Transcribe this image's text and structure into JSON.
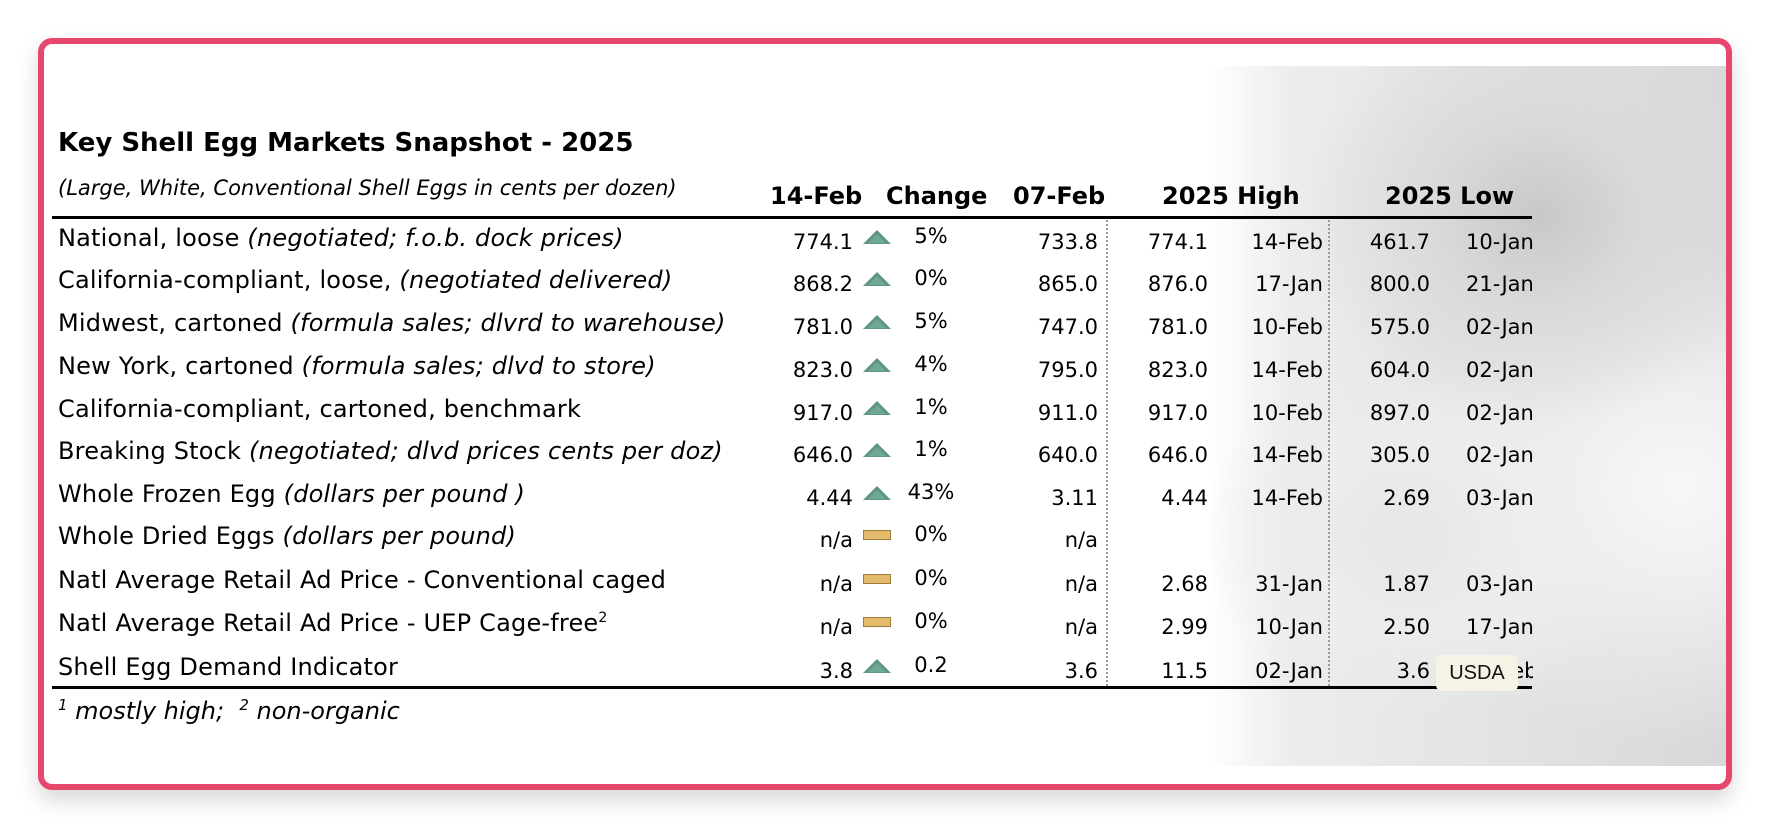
{
  "title": "Key Shell Egg Markets Snapshot - 2025",
  "subtitle": "(Large, White, Conventional Shell Eggs in cents per dozen)",
  "columns": {
    "current": "14-Feb",
    "change": "Change",
    "previous": "07-Feb",
    "high": "2025 High",
    "low": "2025 Low"
  },
  "indicator_colors": {
    "up": "#5c9580",
    "flat": "#e3bb6b"
  },
  "rows": [
    {
      "label": "National, loose ",
      "note": "(negotiated; f.o.b. dock prices)",
      "sup": "",
      "current": "774.1",
      "indicator": "up",
      "change": "5%",
      "previous": "733.8",
      "high": "774.1",
      "high_date": "14-Feb",
      "low": "461.7",
      "low_date": "10-Jan"
    },
    {
      "label": "California-compliant, loose, ",
      "note": "(negotiated delivered)",
      "sup": "",
      "current": "868.2",
      "indicator": "up",
      "change": "0%",
      "previous": "865.0",
      "high": "876.0",
      "high_date": "17-Jan",
      "low": "800.0",
      "low_date": "21-Jan"
    },
    {
      "label": "Midwest, cartoned ",
      "note": "(formula sales; dlvrd to warehouse)",
      "sup": "",
      "current": "781.0",
      "indicator": "up",
      "change": "5%",
      "previous": "747.0",
      "high": "781.0",
      "high_date": "10-Feb",
      "low": "575.0",
      "low_date": "02-Jan"
    },
    {
      "label": "New York, cartoned ",
      "note": "(formula sales; dlvd to store)",
      "sup": "",
      "current": "823.0",
      "indicator": "up",
      "change": "4%",
      "previous": "795.0",
      "high": "823.0",
      "high_date": "14-Feb",
      "low": "604.0",
      "low_date": "02-Jan"
    },
    {
      "label": "California-compliant, cartoned, benchmark",
      "note": "",
      "sup": "",
      "current": "917.0",
      "indicator": "up",
      "change": "1%",
      "previous": "911.0",
      "high": "917.0",
      "high_date": "10-Feb",
      "low": "897.0",
      "low_date": "02-Jan"
    },
    {
      "label": "Breaking Stock ",
      "note": "(negotiated; dlvd prices cents per doz)",
      "sup": "",
      "current": "646.0",
      "indicator": "up",
      "change": "1%",
      "previous": "640.0",
      "high": "646.0",
      "high_date": "14-Feb",
      "low": "305.0",
      "low_date": "02-Jan"
    },
    {
      "label": "Whole Frozen Egg ",
      "note": "(dollars per pound )",
      "sup": "",
      "current": "4.44",
      "indicator": "up",
      "change": "43%",
      "previous": "3.11",
      "high": "4.44",
      "high_date": "14-Feb",
      "low": "2.69",
      "low_date": "03-Jan"
    },
    {
      "label": "Whole Dried Eggs ",
      "note": "(dollars per pound)",
      "sup": "",
      "current": "n/a",
      "indicator": "flat",
      "change": "0%",
      "previous": "n/a",
      "high": "",
      "high_date": "",
      "low": "",
      "low_date": ""
    },
    {
      "label": "Natl Average Retail Ad Price - Conventional caged",
      "note": "",
      "sup": "",
      "current": "n/a",
      "indicator": "flat",
      "change": "0%",
      "previous": "n/a",
      "high": "2.68",
      "high_date": "31-Jan",
      "low": "1.87",
      "low_date": "03-Jan"
    },
    {
      "label": "Natl Average Retail Ad Price - UEP Cage-free",
      "note": "",
      "sup": "2",
      "current": "n/a",
      "indicator": "flat",
      "change": "0%",
      "previous": "n/a",
      "high": "2.99",
      "high_date": "10-Jan",
      "low": "2.50",
      "low_date": "17-Jan"
    },
    {
      "label": "Shell Egg Demand Indicator",
      "note": "",
      "sup": "",
      "current": "3.8",
      "indicator": "up",
      "change": "0.2",
      "previous": "3.6",
      "high": "11.5",
      "high_date": "02-Jan",
      "low": "3.6",
      "low_date": "05-Feb"
    }
  ],
  "footnote": {
    "mark1": "1",
    "text1": " mostly high;",
    "mark2": "2",
    "text2": " non-organic"
  },
  "badge": "USDA"
}
